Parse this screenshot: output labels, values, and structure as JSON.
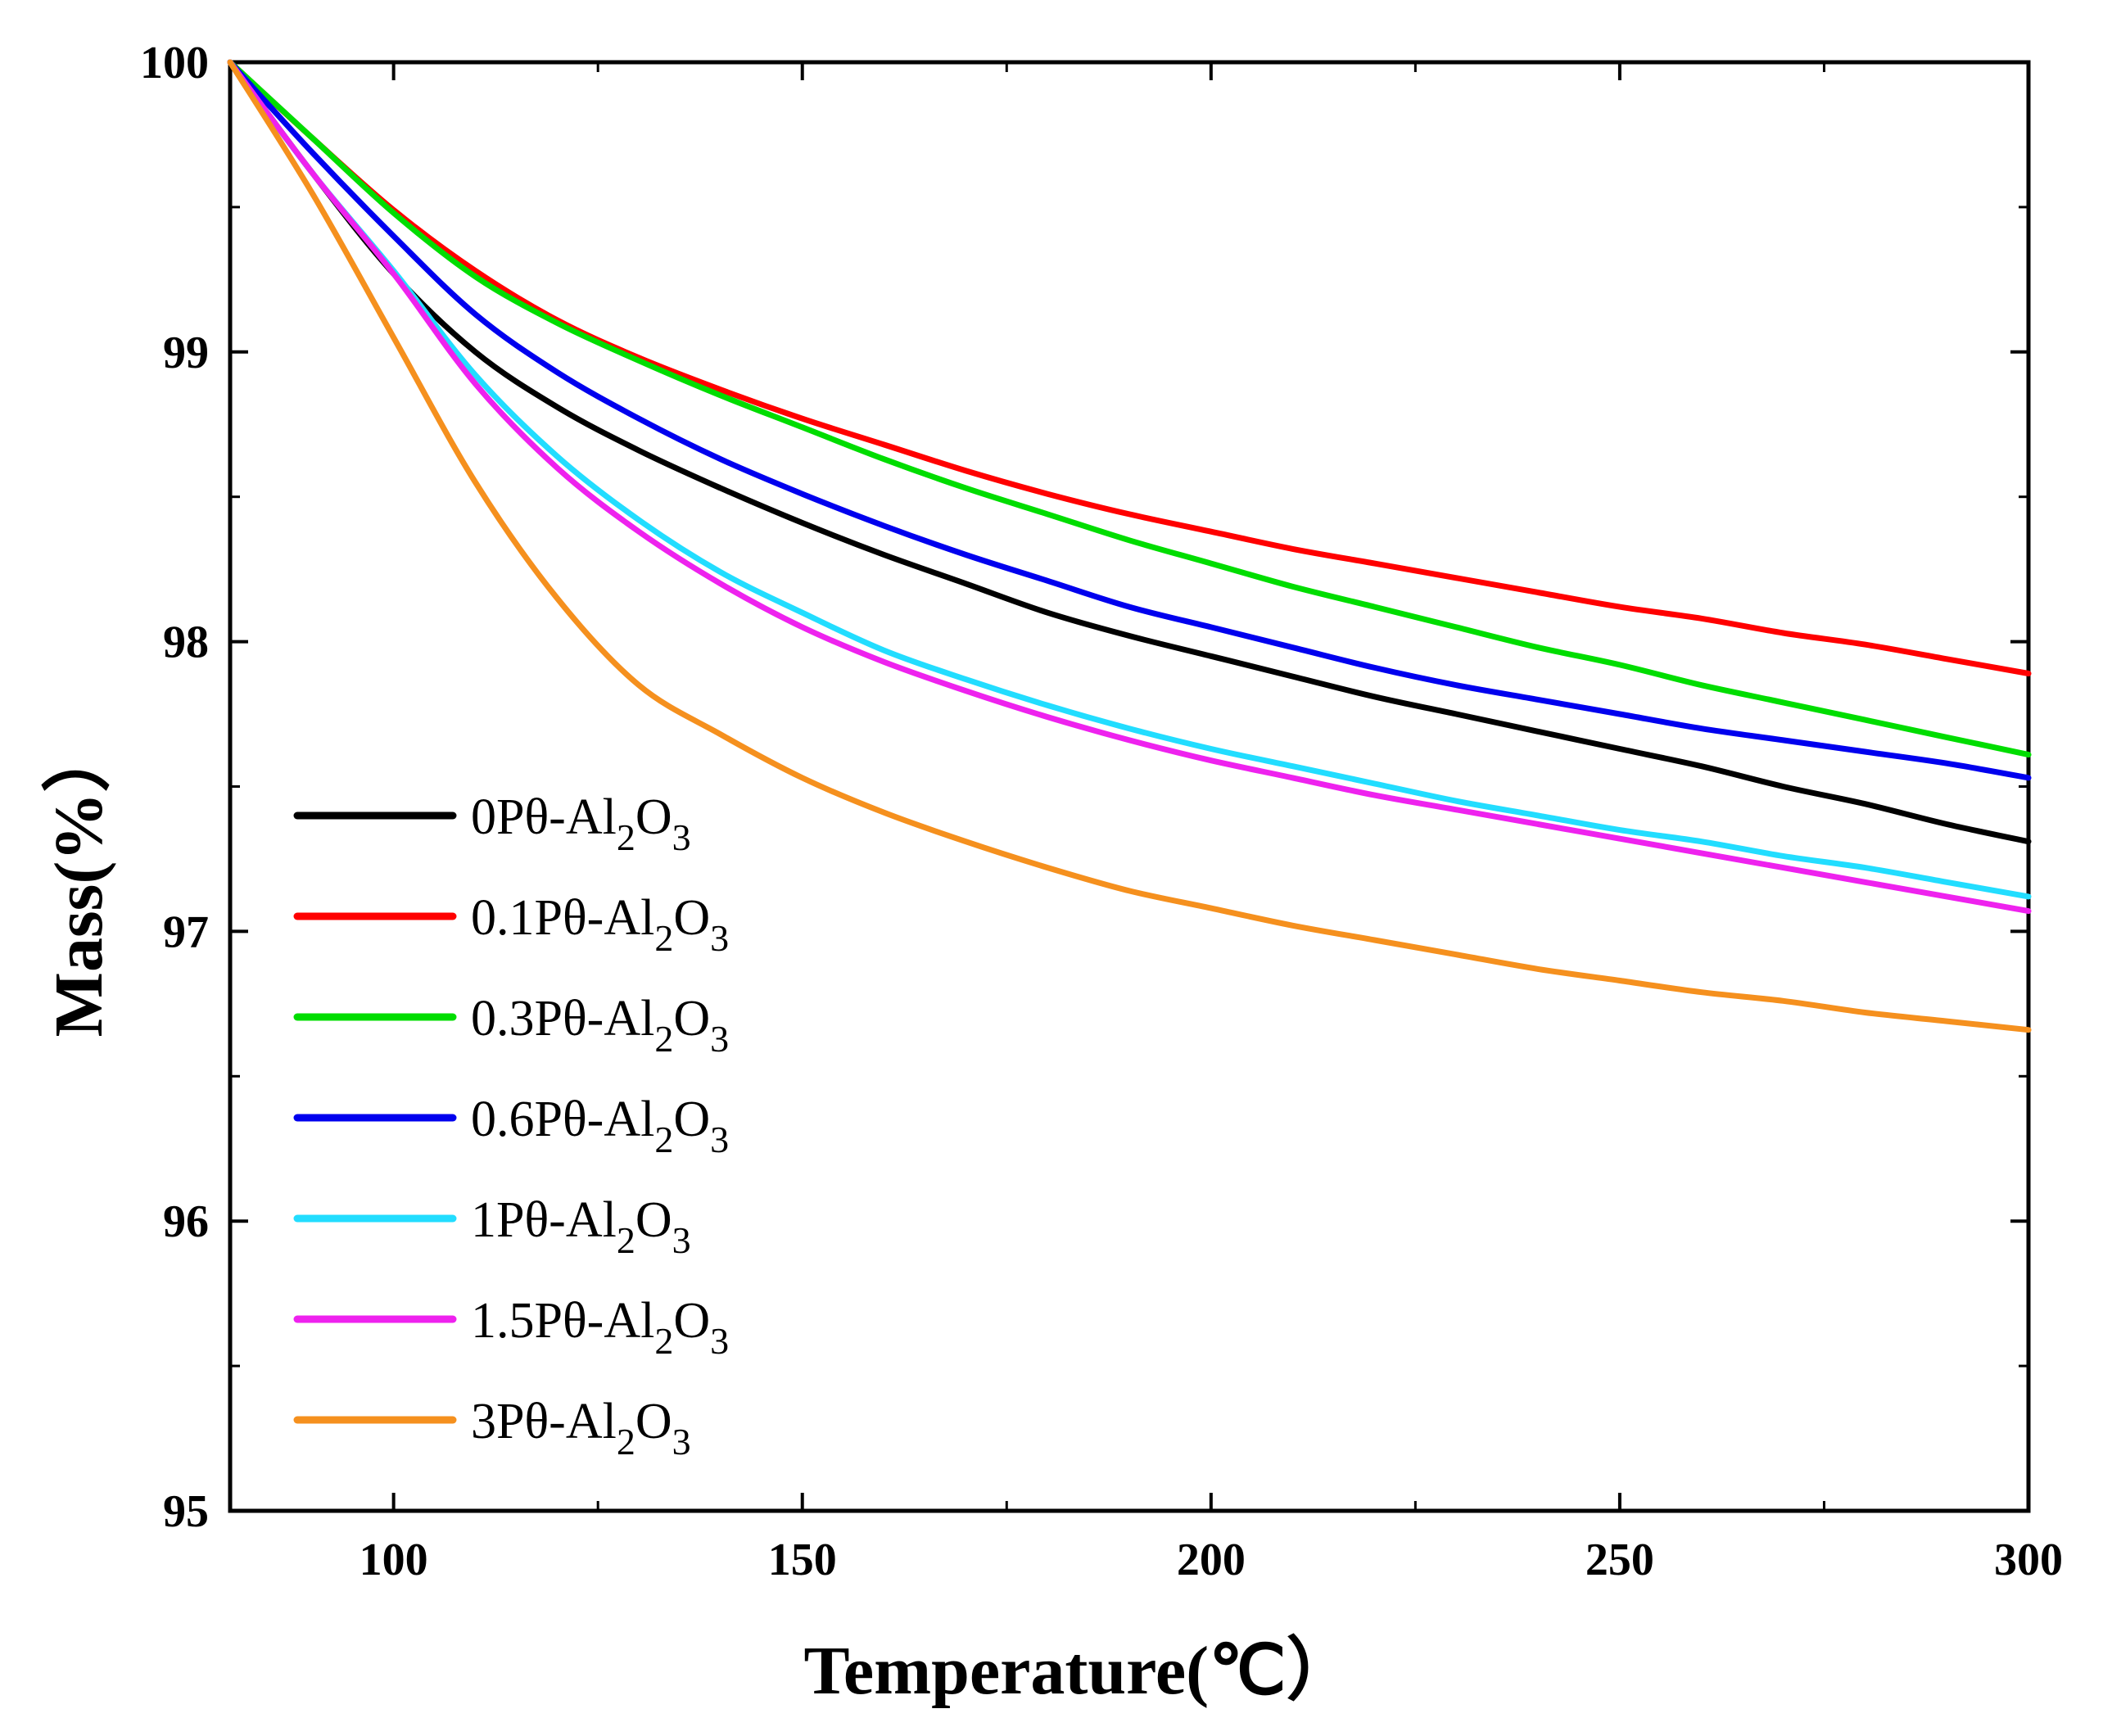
{
  "chart_data": {
    "type": "line",
    "title": "",
    "xlabel": "Temperature(℃）",
    "ylabel": "Mass(%）",
    "xlim": [
      80,
      300
    ],
    "ylim": [
      95,
      100
    ],
    "x_ticks": [
      "100",
      "150",
      "200",
      "250",
      "300"
    ],
    "y_ticks": [
      "95",
      "96",
      "97",
      "98",
      "99",
      "100"
    ],
    "grid": false,
    "legend_position": "bottom-left",
    "x": [
      80,
      90,
      100,
      110,
      120,
      130,
      140,
      150,
      160,
      170,
      180,
      190,
      200,
      210,
      220,
      230,
      240,
      250,
      260,
      270,
      280,
      290,
      300
    ],
    "series": [
      {
        "name": "0Pθ-Al2O3",
        "prefix": "0Pθ-Al",
        "sub1": "2",
        "mid": "O",
        "sub2": "3",
        "color": "#000000",
        "values": [
          100.0,
          99.62,
          99.27,
          99.0,
          98.81,
          98.66,
          98.53,
          98.41,
          98.3,
          98.2,
          98.1,
          98.02,
          97.95,
          97.88,
          97.81,
          97.75,
          97.69,
          97.63,
          97.57,
          97.5,
          97.44,
          97.37,
          97.31
        ]
      },
      {
        "name": "0.1Pθ-Al2O3",
        "prefix": "0.1Pθ-Al",
        "sub1": "2",
        "mid": "O",
        "sub2": "3",
        "color": "#ff0000",
        "values": [
          100.0,
          99.74,
          99.49,
          99.28,
          99.11,
          98.98,
          98.87,
          98.77,
          98.68,
          98.59,
          98.51,
          98.44,
          98.38,
          98.32,
          98.27,
          98.22,
          98.17,
          98.12,
          98.08,
          98.03,
          97.99,
          97.94,
          97.89
        ]
      },
      {
        "name": "0.3Pθ-Al2O3",
        "prefix": "0.3Pθ-Al",
        "sub1": "2",
        "mid": "O",
        "sub2": "3",
        "color": "#00dd00",
        "values": [
          100.0,
          99.74,
          99.48,
          99.26,
          99.1,
          98.97,
          98.85,
          98.74,
          98.63,
          98.53,
          98.44,
          98.35,
          98.27,
          98.19,
          98.12,
          98.05,
          97.98,
          97.92,
          97.85,
          97.79,
          97.73,
          97.67,
          97.61
        ]
      },
      {
        "name": "0.6Pθ-Al2O3",
        "prefix": "0.6Pθ-Al",
        "sub1": "2",
        "mid": "O",
        "sub2": "3",
        "color": "#0000ee",
        "values": [
          100.0,
          99.69,
          99.4,
          99.13,
          98.93,
          98.77,
          98.63,
          98.51,
          98.4,
          98.3,
          98.21,
          98.12,
          98.05,
          97.98,
          97.91,
          97.85,
          97.8,
          97.75,
          97.7,
          97.66,
          97.62,
          97.58,
          97.53
        ]
      },
      {
        "name": "1Pθ-Al2O3",
        "prefix": "1Pθ-Al",
        "sub1": "2",
        "mid": "O",
        "sub2": "3",
        "color": "#22ddff",
        "values": [
          100.0,
          99.62,
          99.28,
          98.92,
          98.64,
          98.42,
          98.24,
          98.1,
          97.97,
          97.87,
          97.78,
          97.7,
          97.63,
          97.57,
          97.51,
          97.45,
          97.4,
          97.35,
          97.31,
          97.26,
          97.22,
          97.17,
          97.12
        ]
      },
      {
        "name": "1.5Pθ-Al2O3",
        "prefix": "1.5Pθ-Al",
        "sub1": "2",
        "mid": "O",
        "sub2": "3",
        "color": "#ee22ee",
        "values": [
          100.0,
          99.62,
          99.27,
          98.89,
          98.6,
          98.38,
          98.2,
          98.05,
          97.93,
          97.83,
          97.74,
          97.66,
          97.59,
          97.53,
          97.47,
          97.42,
          97.37,
          97.32,
          97.27,
          97.22,
          97.17,
          97.12,
          97.07
        ]
      },
      {
        "name": "3Pθ-Al2O3",
        "prefix": "3Pθ-Al",
        "sub1": "2",
        "mid": "O",
        "sub2": "3",
        "color": "#f5901e",
        "values": [
          100.0,
          99.55,
          99.05,
          98.55,
          98.15,
          97.85,
          97.68,
          97.53,
          97.41,
          97.31,
          97.22,
          97.14,
          97.08,
          97.02,
          96.97,
          96.92,
          96.87,
          96.83,
          96.79,
          96.76,
          96.72,
          96.69,
          96.66
        ]
      }
    ]
  }
}
